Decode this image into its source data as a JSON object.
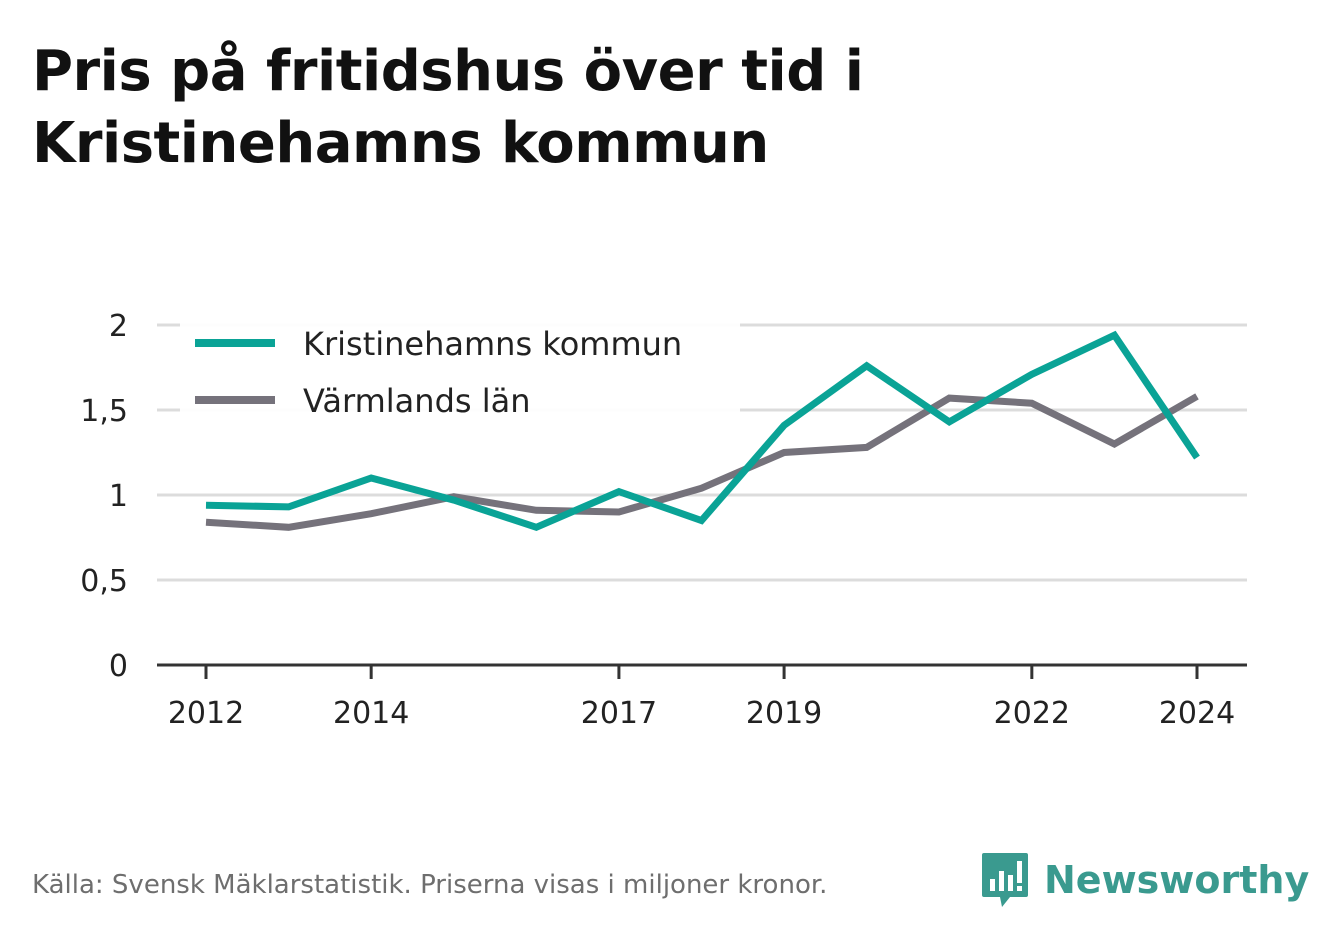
{
  "title_lines": [
    "Pris på fritidshus över tid i",
    "Kristinehamns kommun"
  ],
  "footer": "Källa: Svensk Mäklarstatistik. Priserna visas i miljoner kronor.",
  "brand": "Newsworthy",
  "colors": {
    "kommun": "#0aa396",
    "lan": "#75727b",
    "grid": "#dcdcdc",
    "axis": "#333333",
    "brand": "#3a9a8f"
  },
  "chart_data": {
    "type": "line",
    "title": "Pris på fritidshus över tid i Kristinehamns kommun",
    "x": [
      2012,
      2013,
      2014,
      2015,
      2016,
      2017,
      2018,
      2019,
      2020,
      2021,
      2022,
      2023,
      2024
    ],
    "x_tick_labels": [
      "2012",
      "2014",
      "2017",
      "2019",
      "2022",
      "2024"
    ],
    "y_tick_labels": [
      "0",
      "0,5",
      "1",
      "1,5",
      "2"
    ],
    "ylim": [
      0,
      2
    ],
    "grid": true,
    "legend_position": "top-left",
    "series": [
      {
        "name": "Kristinehamns kommun",
        "values": [
          0.94,
          0.93,
          1.1,
          0.97,
          0.81,
          1.02,
          0.85,
          1.41,
          1.76,
          1.43,
          1.71,
          1.94,
          1.22
        ]
      },
      {
        "name": "Värmlands län",
        "values": [
          0.84,
          0.81,
          0.89,
          0.99,
          0.91,
          0.9,
          1.04,
          1.25,
          1.28,
          1.57,
          1.54,
          1.3,
          1.58
        ]
      }
    ]
  }
}
